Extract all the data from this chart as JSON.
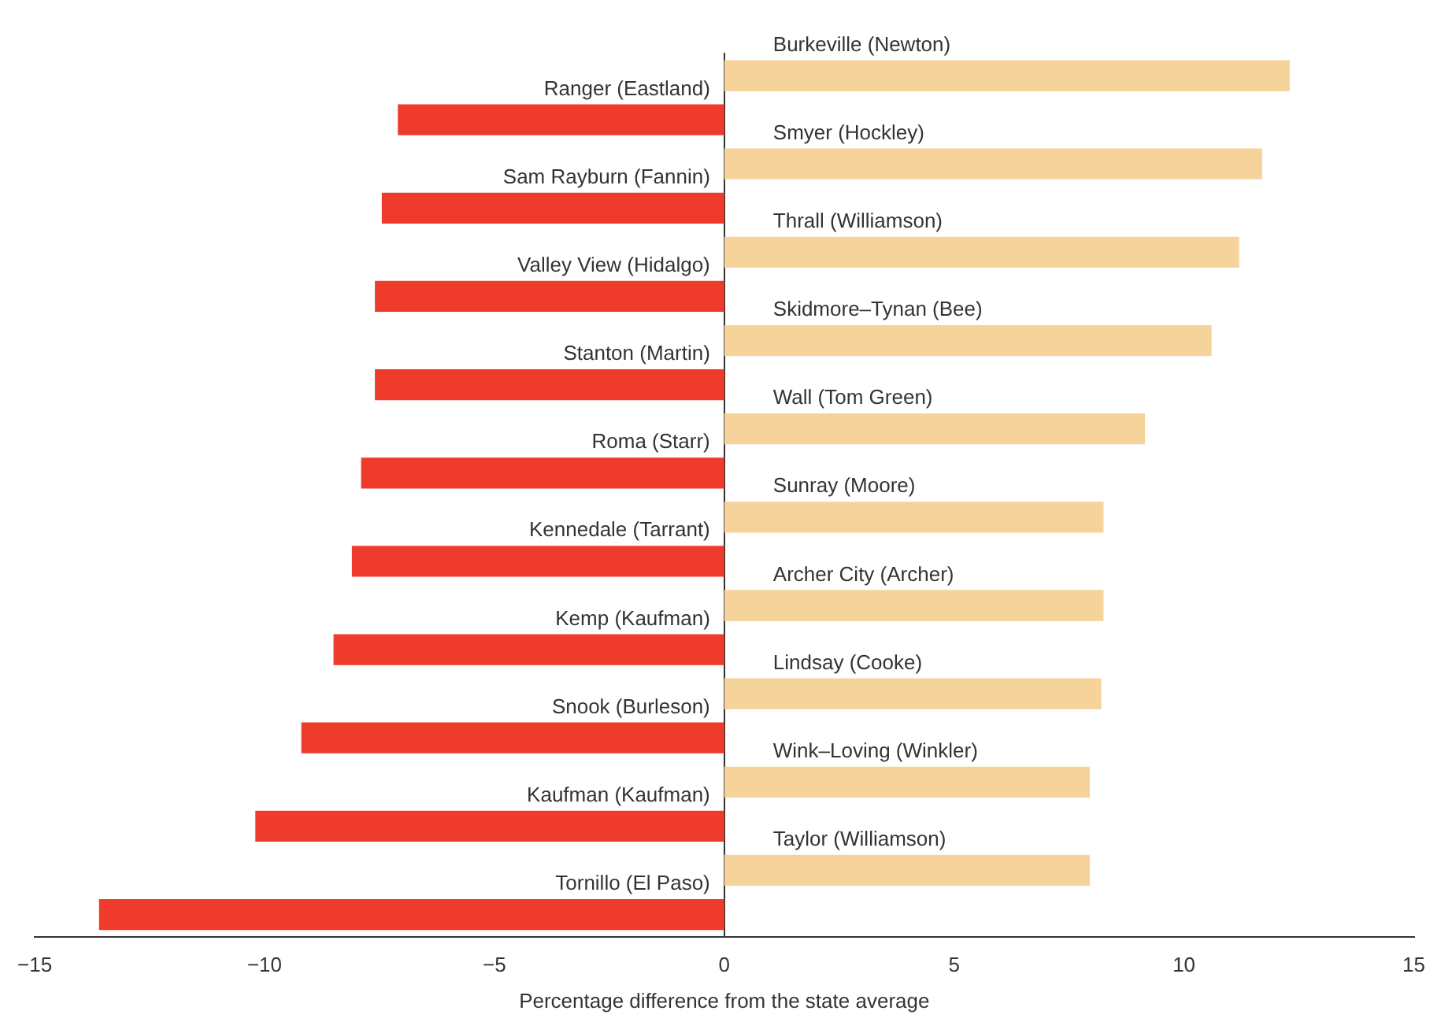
{
  "chart_data": {
    "type": "bar",
    "orientation": "horizontal",
    "xlabel": "Percentage difference from the state average",
    "categories": [
      "Burkeville (Newton)",
      "Ranger (Eastland)",
      "Smyer (Hockley)",
      "Sam Rayburn (Fannin)",
      "Thrall (Williamson)",
      "Valley View (Hidalgo)",
      "Skidmore–Tynan (Bee)",
      "Stanton (Martin)",
      "Wall (Tom Green)",
      "Roma (Starr)",
      "Sunray (Moore)",
      "Kennedale (Tarrant)",
      "Archer City (Archer)",
      "Kemp (Kaufman)",
      "Lindsay (Cooke)",
      "Snook (Burleson)",
      "Wink–Loving (Winkler)",
      "Kaufman (Kaufman)",
      "Taylor (Williamson)",
      "Tornillo (El Paso)"
    ],
    "values": [
      12.3,
      -7.1,
      11.7,
      -7.45,
      11.2,
      -7.6,
      10.6,
      -7.6,
      9.15,
      -7.9,
      8.25,
      -8.1,
      8.25,
      -8.5,
      8.2,
      -9.2,
      7.95,
      -10.2,
      7.95,
      -13.6
    ],
    "colors": [
      "#f5d39b",
      "#ee3b2b",
      "#f5d39b",
      "#ee3b2b",
      "#f5d39b",
      "#ee3b2b",
      "#f5d39b",
      "#ee3b2b",
      "#f5d39b",
      "#ee3b2b",
      "#f5d39b",
      "#ee3b2b",
      "#f5d39b",
      "#ee3b2b",
      "#f5d39b",
      "#ee3b2b",
      "#f5d39b",
      "#ee3b2b",
      "#f5d39b",
      "#ee3b2b"
    ],
    "xlim": [
      -15,
      15
    ],
    "xticks": [
      {
        "value": -15,
        "label": "−15"
      },
      {
        "value": -10,
        "label": "−10"
      },
      {
        "value": -5,
        "label": "−5"
      },
      0,
      5,
      10,
      15
    ]
  }
}
